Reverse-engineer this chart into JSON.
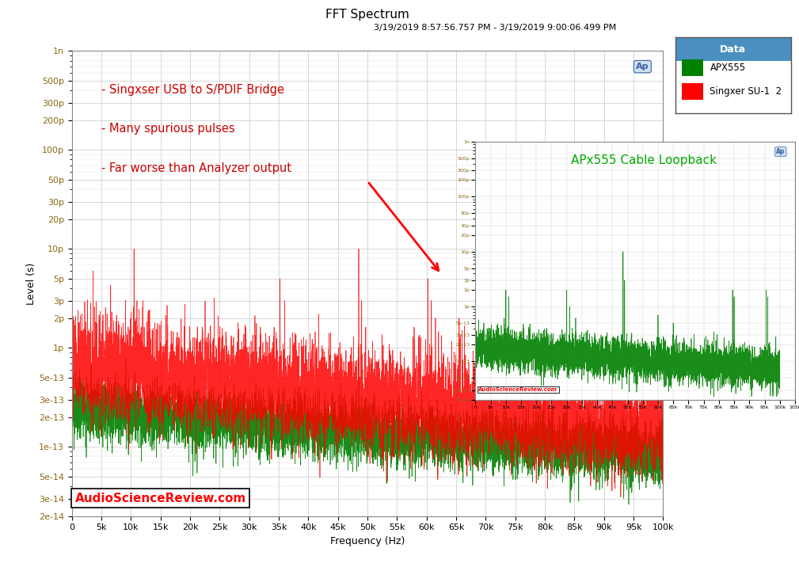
{
  "title": "FFT Spectrum",
  "subtitle": "3/19/2019 8:57:56.757 PM - 3/19/2019 9:00:06.499 PM",
  "xlabel": "Frequency (Hz)",
  "ylabel": "Level (s)",
  "bg_color": "#ffffff",
  "plot_bg_color": "#ffffff",
  "grid_color": "#c8c8c8",
  "legend_title": "Data",
  "legend_title_bg": "#4a8fbf",
  "legend_entries": [
    "APX555",
    "Singxer SU-1  2"
  ],
  "legend_colors": [
    "#008000",
    "#ff0000"
  ],
  "annotation_lines": [
    "- Singxser USB to S/PDIF Bridge",
    "- Many spurious pulses",
    "- Far worse than Analyzer output"
  ],
  "annotation_color": "#cc0000",
  "watermark": "AudioScienceReview.com",
  "watermark_color": "#ff0000",
  "inset_label": "APx555 Cable Loopback",
  "inset_label_color": "#00aa00",
  "xmin": 0,
  "xmax": 100000,
  "ymin": 2e-14,
  "ymax": 1e-09,
  "green_color": "#008000",
  "red_color": "#ff0000",
  "ytick_vals": [
    2e-14,
    3e-14,
    5e-14,
    1e-13,
    2e-13,
    3e-13,
    5e-13,
    1e-12,
    2e-12,
    3e-12,
    5e-12,
    1e-11,
    2e-11,
    3e-11,
    5e-11,
    1e-10,
    2e-10,
    3e-10,
    5e-10,
    1e-09
  ],
  "ytick_labels": [
    "2e-14",
    "3e-14",
    "5e-14",
    "1e-13",
    "2e-13",
    "3e-13",
    "5e-13",
    "1p",
    "2p",
    "3p",
    "5p",
    "10p",
    "20p",
    "30p",
    "50p",
    "100p",
    "200p",
    "300p",
    "500p",
    "1n"
  ]
}
